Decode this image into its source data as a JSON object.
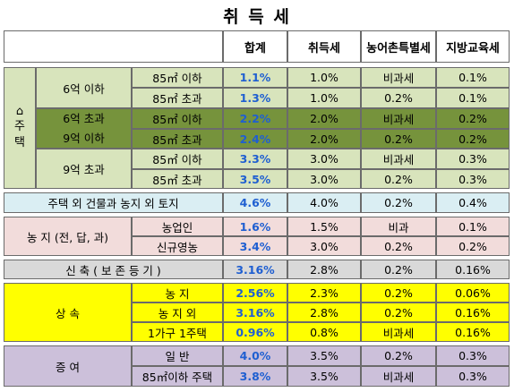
{
  "title": "취 득 세",
  "header": {
    "total": "합계",
    "acq": "취득세",
    "rural": "농어촌특별세",
    "edu": "지방교육세"
  },
  "housing": {
    "label_chars": [
      "주",
      "택"
    ],
    "icon": "house-icon",
    "tier1": {
      "label": "6억 이하",
      "rows": [
        {
          "size": "85㎡ 이하",
          "total": "1.1%",
          "acq": "1.0%",
          "rural": "비과세",
          "edu": "0.1%"
        },
        {
          "size": "85㎡ 초과",
          "total": "1.3%",
          "acq": "1.0%",
          "rural": "0.2%",
          "edu": "0.1%"
        }
      ]
    },
    "tier2": {
      "label_line1": "6억 초과",
      "label_line2": "9억 이하",
      "rows": [
        {
          "size": "85㎡ 이하",
          "total": "2.2%",
          "acq": "2.0%",
          "rural": "비과세",
          "edu": "0.2%"
        },
        {
          "size": "85㎡ 초과",
          "total": "2.4%",
          "acq": "2.0%",
          "rural": "0.2%",
          "edu": "0.2%"
        }
      ]
    },
    "tier3": {
      "label": "9억 초과",
      "rows": [
        {
          "size": "85㎡ 이하",
          "total": "3.3%",
          "acq": "3.0%",
          "rural": "비과세",
          "edu": "0.3%"
        },
        {
          "size": "85㎡ 초과",
          "total": "3.5%",
          "acq": "3.0%",
          "rural": "0.2%",
          "edu": "0.3%"
        }
      ]
    }
  },
  "other_building": {
    "label": "주택 외 건물과 농지 외 토지",
    "total": "4.6%",
    "acq": "4.0%",
    "rural": "0.2%",
    "edu": "0.4%"
  },
  "farmland": {
    "label": "농 지 (전, 답, 과)",
    "rows": [
      {
        "sub": "농업인",
        "total": "1.6%",
        "acq": "1.5%",
        "rural": "비과",
        "edu": "0.1%"
      },
      {
        "sub": "신규영농",
        "total": "3.4%",
        "acq": "3.0%",
        "rural": "0.2%",
        "edu": "0.2%"
      }
    ]
  },
  "new_build": {
    "label": "신 축 ( 보 존 등 기 )",
    "total": "3.16%",
    "acq": "2.8%",
    "rural": "0.2%",
    "edu": "0.16%"
  },
  "inheritance": {
    "label": "상 속",
    "rows": [
      {
        "sub": "농 지",
        "total": "2.56%",
        "acq": "2.3%",
        "rural": "0.2%",
        "edu": "0.06%"
      },
      {
        "sub": "농 지 외",
        "total": "3.16%",
        "acq": "2.8%",
        "rural": "0.2%",
        "edu": "0.16%"
      },
      {
        "sub": "1가구 1주택",
        "total": "0.96%",
        "acq": "0.8%",
        "rural": "비과세",
        "edu": "0.16%"
      }
    ]
  },
  "gift": {
    "label": "증 여",
    "rows": [
      {
        "sub": "일 반",
        "total": "4.0%",
        "acq": "3.5%",
        "rural": "0.2%",
        "edu": "0.3%"
      },
      {
        "sub": "85㎡이하 주택",
        "total": "3.8%",
        "acq": "3.5%",
        "rural": "비과세",
        "edu": "0.3%"
      }
    ]
  }
}
